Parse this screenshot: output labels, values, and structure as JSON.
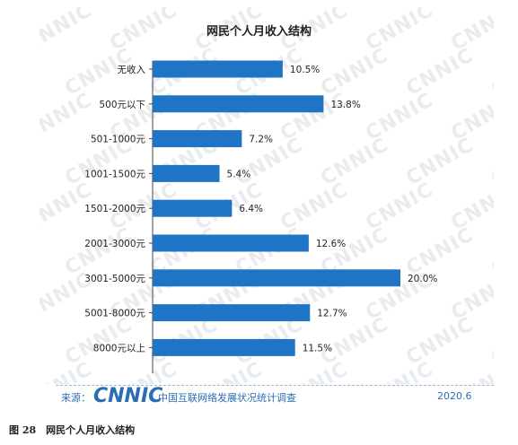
{
  "chart_data": {
    "type": "bar",
    "orientation": "horizontal",
    "title": "网民个人月收入结构",
    "categories": [
      "无收入",
      "500元以下",
      "501-1000元",
      "1001-1500元",
      "1501-2000元",
      "2001-3000元",
      "3001-5000元",
      "5001-8000元",
      "8000元以上"
    ],
    "values": [
      10.5,
      13.8,
      7.2,
      5.4,
      6.4,
      12.6,
      20.0,
      12.7,
      11.5
    ],
    "value_labels": [
      "10.5%",
      "13.8%",
      "7.2%",
      "5.4%",
      "6.4%",
      "12.6%",
      "20.0%",
      "12.7%",
      "11.5%"
    ],
    "xlim": [
      0,
      20
    ],
    "grid": false,
    "bar_color": "#1f74c5"
  },
  "watermark": "CNNIC",
  "footer": {
    "source_label": "来源：",
    "logo_text": "CNNIC",
    "org_name": "中国互联网络发展状况统计调查",
    "date": "2020.6"
  },
  "caption": "图 28　网民个人月收入结构"
}
